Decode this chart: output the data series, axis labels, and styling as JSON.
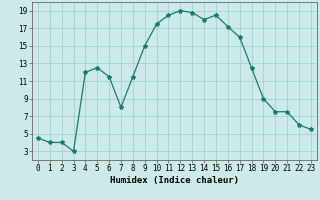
{
  "x": [
    0,
    1,
    2,
    3,
    4,
    5,
    6,
    7,
    8,
    9,
    10,
    11,
    12,
    13,
    14,
    15,
    16,
    17,
    18,
    19,
    20,
    21,
    22,
    23
  ],
  "y": [
    4.5,
    4.0,
    4.0,
    3.0,
    12.0,
    12.5,
    11.5,
    8.0,
    11.5,
    15.0,
    17.5,
    18.5,
    19.0,
    18.8,
    18.0,
    18.5,
    17.2,
    16.0,
    12.5,
    9.0,
    7.5,
    7.5,
    6.0,
    5.5
  ],
  "line_color": "#1a7a6e",
  "marker": "*",
  "marker_size": 3,
  "bg_color": "#cceaea",
  "grid_color": "#aacece",
  "xlabel": "Humidex (Indice chaleur)",
  "xlim": [
    -0.5,
    23.5
  ],
  "ylim": [
    2,
    20
  ],
  "yticks": [
    3,
    5,
    7,
    9,
    11,
    13,
    15,
    17,
    19
  ],
  "xticks": [
    0,
    1,
    2,
    3,
    4,
    5,
    6,
    7,
    8,
    9,
    10,
    11,
    12,
    13,
    14,
    15,
    16,
    17,
    18,
    19,
    20,
    21,
    22,
    23
  ],
  "xtick_labels": [
    "0",
    "1",
    "2",
    "3",
    "4",
    "5",
    "6",
    "7",
    "8",
    "9",
    "10",
    "11",
    "12",
    "13",
    "14",
    "15",
    "16",
    "17",
    "18",
    "19",
    "20",
    "21",
    "22",
    "23"
  ],
  "tick_fontsize": 5.5,
  "label_fontsize": 6.5
}
